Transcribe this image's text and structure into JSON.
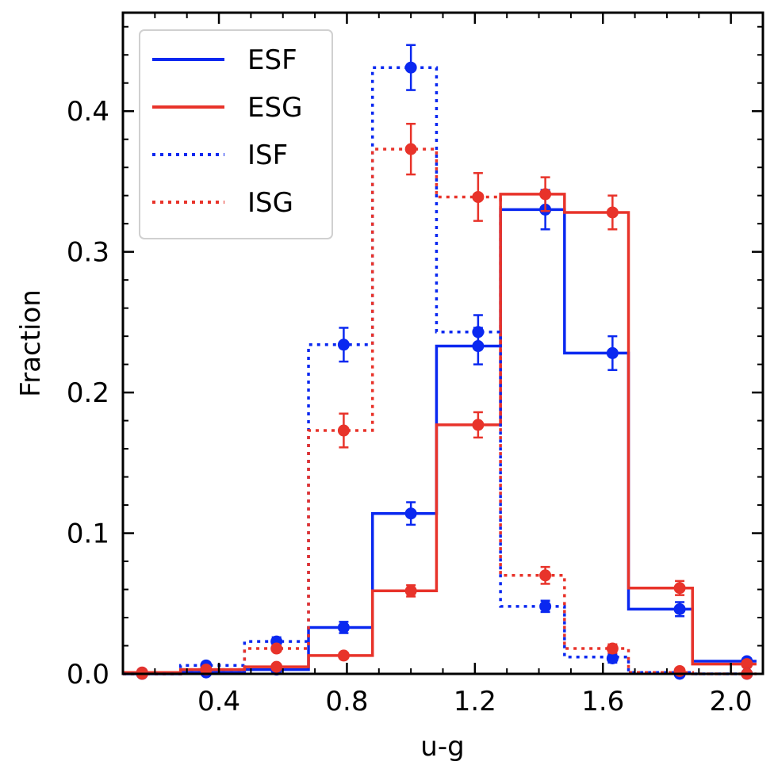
{
  "chart_data": {
    "type": "histogram",
    "xlabel": "u-g",
    "ylabel": "Fraction",
    "xlim": [
      0.1,
      2.1
    ],
    "ylim": [
      0.0,
      0.47
    ],
    "xticks": [
      0.4,
      0.8,
      1.2,
      1.6,
      2.0
    ],
    "xtick_labels": [
      "0.4",
      "0.8",
      "1.2",
      "1.6",
      "2.0"
    ],
    "yticks": [
      0.0,
      0.1,
      0.2,
      0.3,
      0.4
    ],
    "ytick_labels": [
      "0.0",
      "0.1",
      "0.2",
      "0.3",
      "0.4"
    ],
    "bin_edges": [
      0.08,
      0.28,
      0.48,
      0.68,
      0.88,
      1.08,
      1.28,
      1.48,
      1.68,
      1.88,
      2.08
    ],
    "bin_centers": [
      0.16,
      0.36,
      0.58,
      0.79,
      1.0,
      1.21,
      1.42,
      1.63,
      1.84,
      2.05
    ],
    "legend_position": "upper-left",
    "series": [
      {
        "name": "ESF",
        "color": "#0a28f0",
        "linestyle": "solid",
        "values": [
          0.0,
          0.001,
          0.003,
          0.033,
          0.114,
          0.233,
          0.33,
          0.228,
          0.046,
          0.009
        ],
        "errors": [
          0.0,
          0.001,
          0.002,
          0.004,
          0.008,
          0.013,
          0.014,
          0.012,
          0.005,
          0.002
        ]
      },
      {
        "name": "ESG",
        "color": "#e8332a",
        "linestyle": "solid",
        "values": [
          0.001,
          0.003,
          0.005,
          0.013,
          0.059,
          0.177,
          0.341,
          0.328,
          0.061,
          0.007
        ],
        "errors": [
          0.001,
          0.001,
          0.001,
          0.002,
          0.004,
          0.009,
          0.012,
          0.012,
          0.005,
          0.002
        ]
      },
      {
        "name": "ISF",
        "color": "#0a28f0",
        "linestyle": "dotted",
        "values": [
          0.0,
          0.006,
          0.023,
          0.234,
          0.431,
          0.243,
          0.048,
          0.012,
          0.001,
          0.0
        ],
        "errors": [
          0.0,
          0.002,
          0.003,
          0.012,
          0.016,
          0.012,
          0.004,
          0.003,
          0.001,
          0.0
        ],
        "marker_values": [
          0.0,
          0.006,
          0.023,
          0.234,
          0.431,
          0.243,
          0.048,
          0.011,
          0.0,
          0.0
        ]
      },
      {
        "name": "ISG",
        "color": "#e8332a",
        "linestyle": "dotted",
        "values": [
          0.0,
          0.003,
          0.018,
          0.173,
          0.373,
          0.339,
          0.07,
          0.018,
          0.001,
          0.0
        ],
        "errors": [
          0.0,
          0.001,
          0.002,
          0.012,
          0.018,
          0.017,
          0.006,
          0.003,
          0.001,
          0.0
        ],
        "marker_values": [
          0.0,
          0.003,
          0.018,
          0.173,
          0.373,
          0.339,
          0.07,
          0.018,
          0.002,
          0.0
        ]
      }
    ]
  }
}
